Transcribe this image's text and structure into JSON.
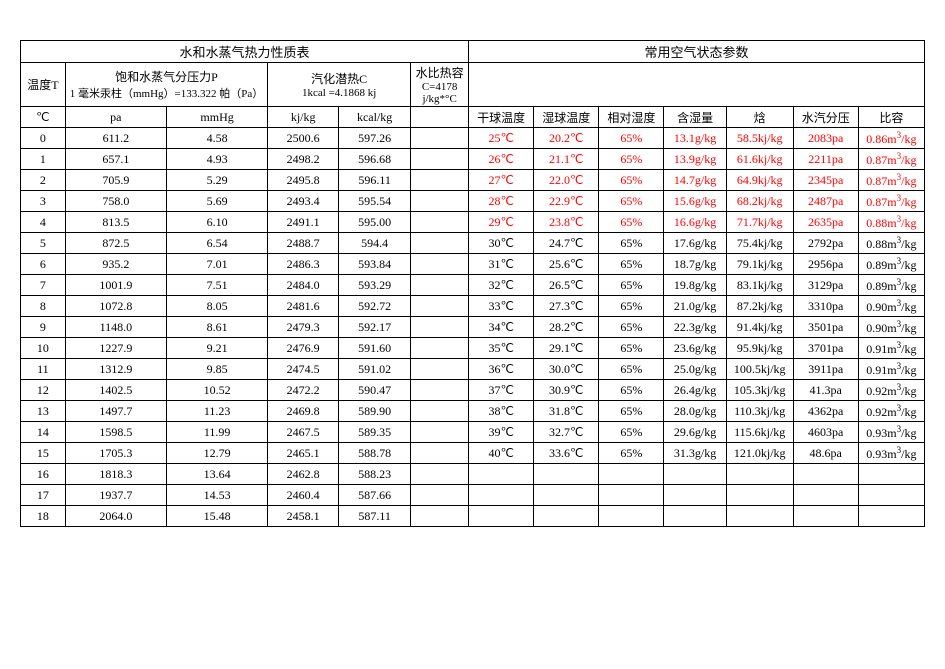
{
  "left_title": "水和水蒸气热力性质表",
  "right_title": "常用空气状态参数",
  "hdr": {
    "temp": "温度T",
    "p_title": "饱和水蒸气分压力P",
    "p_sub": "1 毫米汞柱（mmHg）=133.322 帕（Pa）",
    "c_title": "汽化潜热C",
    "c_sub": "1kcal =4.1868 kj",
    "cap_title": "水比热容",
    "cap_sub1": "C=4178",
    "cap_sub2": "j/kg*°C",
    "unit_c": "℃",
    "unit_pa": "pa",
    "unit_mm": "mmHg",
    "unit_kj": "kj/kg",
    "unit_kcal": "kcal/kg",
    "dry": "干球温度",
    "wet": "湿球温度",
    "rh": "相对湿度",
    "hum": "含湿量",
    "enth": "焓",
    "vp": "水汽分压",
    "sv": "比容"
  },
  "steam": [
    {
      "t": "0",
      "pa": "611.2",
      "mm": "4.58",
      "kj": "2500.6",
      "kcal": "597.26"
    },
    {
      "t": "1",
      "pa": "657.1",
      "mm": "4.93",
      "kj": "2498.2",
      "kcal": "596.68"
    },
    {
      "t": "2",
      "pa": "705.9",
      "mm": "5.29",
      "kj": "2495.8",
      "kcal": "596.11"
    },
    {
      "t": "3",
      "pa": "758.0",
      "mm": "5.69",
      "kj": "2493.4",
      "kcal": "595.54"
    },
    {
      "t": "4",
      "pa": "813.5",
      "mm": "6.10",
      "kj": "2491.1",
      "kcal": "595.00"
    },
    {
      "t": "5",
      "pa": "872.5",
      "mm": "6.54",
      "kj": "2488.7",
      "kcal": "594.4"
    },
    {
      "t": "6",
      "pa": "935.2",
      "mm": "7.01",
      "kj": "2486.3",
      "kcal": "593.84"
    },
    {
      "t": "7",
      "pa": "1001.9",
      "mm": "7.51",
      "kj": "2484.0",
      "kcal": "593.29"
    },
    {
      "t": "8",
      "pa": "1072.8",
      "mm": "8.05",
      "kj": "2481.6",
      "kcal": "592.72"
    },
    {
      "t": "9",
      "pa": "1148.0",
      "mm": "8.61",
      "kj": "2479.3",
      "kcal": "592.17"
    },
    {
      "t": "10",
      "pa": "1227.9",
      "mm": "9.21",
      "kj": "2476.9",
      "kcal": "591.60"
    },
    {
      "t": "11",
      "pa": "1312.9",
      "mm": "9.85",
      "kj": "2474.5",
      "kcal": "591.02"
    },
    {
      "t": "12",
      "pa": "1402.5",
      "mm": "10.52",
      "kj": "2472.2",
      "kcal": "590.47"
    },
    {
      "t": "13",
      "pa": "1497.7",
      "mm": "11.23",
      "kj": "2469.8",
      "kcal": "589.90"
    },
    {
      "t": "14",
      "pa": "1598.5",
      "mm": "11.99",
      "kj": "2467.5",
      "kcal": "589.35"
    },
    {
      "t": "15",
      "pa": "1705.3",
      "mm": "12.79",
      "kj": "2465.1",
      "kcal": "588.78"
    },
    {
      "t": "16",
      "pa": "1818.3",
      "mm": "13.64",
      "kj": "2462.8",
      "kcal": "588.23"
    },
    {
      "t": "17",
      "pa": "1937.7",
      "mm": "14.53",
      "kj": "2460.4",
      "kcal": "587.66"
    },
    {
      "t": "18",
      "pa": "2064.0",
      "mm": "15.48",
      "kj": "2458.1",
      "kcal": "587.11"
    }
  ],
  "air": [
    {
      "dry": "25℃",
      "wet": "20.2℃",
      "rh": "65%",
      "hum": "13.1g/kg",
      "enth": "58.5kj/kg",
      "vp": "2083pa",
      "sv": "0.86m³/kg",
      "red": true
    },
    {
      "dry": "26℃",
      "wet": "21.1℃",
      "rh": "65%",
      "hum": "13.9g/kg",
      "enth": "61.6kj/kg",
      "vp": "2211pa",
      "sv": "0.87m³/kg",
      "red": true
    },
    {
      "dry": "27℃",
      "wet": "22.0℃",
      "rh": "65%",
      "hum": "14.7g/kg",
      "enth": "64.9kj/kg",
      "vp": "2345pa",
      "sv": "0.87m³/kg",
      "red": true
    },
    {
      "dry": "28℃",
      "wet": "22.9℃",
      "rh": "65%",
      "hum": "15.6g/kg",
      "enth": "68.2kj/kg",
      "vp": "2487pa",
      "sv": "0.87m³/kg",
      "red": true
    },
    {
      "dry": "29℃",
      "wet": "23.8℃",
      "rh": "65%",
      "hum": "16.6g/kg",
      "enth": "71.7kj/kg",
      "vp": "2635pa",
      "sv": "0.88m³/kg",
      "red": true
    },
    {
      "dry": "30℃",
      "wet": "24.7℃",
      "rh": "65%",
      "hum": "17.6g/kg",
      "enth": "75.4kj/kg",
      "vp": "2792pa",
      "sv": "0.88m³/kg",
      "red": false
    },
    {
      "dry": "31℃",
      "wet": "25.6℃",
      "rh": "65%",
      "hum": "18.7g/kg",
      "enth": "79.1kj/kg",
      "vp": "2956pa",
      "sv": "0.89m³/kg",
      "red": false
    },
    {
      "dry": "32℃",
      "wet": "26.5℃",
      "rh": "65%",
      "hum": "19.8g/kg",
      "enth": "83.1kj/kg",
      "vp": "3129pa",
      "sv": "0.89m³/kg",
      "red": false
    },
    {
      "dry": "33℃",
      "wet": "27.3℃",
      "rh": "65%",
      "hum": "21.0g/kg",
      "enth": "87.2kj/kg",
      "vp": "3310pa",
      "sv": "0.90m³/kg",
      "red": false
    },
    {
      "dry": "34℃",
      "wet": "28.2℃",
      "rh": "65%",
      "hum": "22.3g/kg",
      "enth": "91.4kj/kg",
      "vp": "3501pa",
      "sv": "0.90m³/kg",
      "red": false
    },
    {
      "dry": "35℃",
      "wet": "29.1℃",
      "rh": "65%",
      "hum": "23.6g/kg",
      "enth": "95.9kj/kg",
      "vp": "3701pa",
      "sv": "0.91m³/kg",
      "red": false
    },
    {
      "dry": "36℃",
      "wet": "30.0℃",
      "rh": "65%",
      "hum": "25.0g/kg",
      "enth": "100.5kj/kg",
      "vp": "3911pa",
      "sv": "0.91m³/kg",
      "red": false
    },
    {
      "dry": "37℃",
      "wet": "30.9℃",
      "rh": "65%",
      "hum": "26.4g/kg",
      "enth": "105.3kj/kg",
      "vp": "41.3pa",
      "sv": "0.92m³/kg",
      "red": false
    },
    {
      "dry": "38℃",
      "wet": "31.8℃",
      "rh": "65%",
      "hum": "28.0g/kg",
      "enth": "110.3kj/kg",
      "vp": "4362pa",
      "sv": "0.92m³/kg",
      "red": false
    },
    {
      "dry": "39℃",
      "wet": "32.7℃",
      "rh": "65%",
      "hum": "29.6g/kg",
      "enth": "115.6kj/kg",
      "vp": "4603pa",
      "sv": "0.93m³/kg",
      "red": false
    },
    {
      "dry": "40℃",
      "wet": "33.6℃",
      "rh": "65%",
      "hum": "31.3g/kg",
      "enth": "121.0kj/kg",
      "vp": "48.6pa",
      "sv": "0.93m³/kg",
      "red": false
    }
  ],
  "col_widths": {
    "t": 40,
    "pa": 90,
    "mm": 90,
    "kj": 90,
    "kcal": 90,
    "cap": 50,
    "air": 64
  }
}
